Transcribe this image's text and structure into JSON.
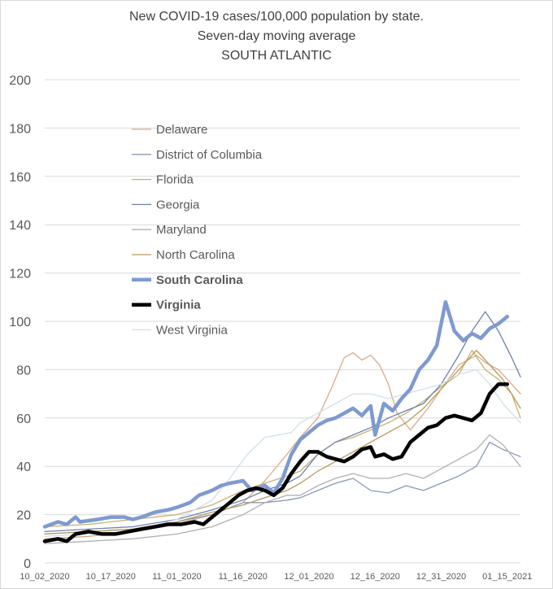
{
  "chart_data": {
    "type": "line",
    "title": "New COVID-19 cases/100,000 population by state.",
    "subtitle": "Seven-day moving average",
    "region_label": "SOUTH ATLANTIC",
    "xlabel": "",
    "ylabel": "",
    "ylim": [
      0,
      200
    ],
    "y_ticks": [
      0,
      20,
      40,
      60,
      80,
      100,
      120,
      140,
      160,
      180,
      200
    ],
    "x_ticks": [
      "10_02_2020",
      "10_17_2020",
      "11_01_2020",
      "11_16_2020",
      "12_01_2020",
      "12_16_2020",
      "12_31_2020",
      "01_15_2021"
    ],
    "x_range_days": [
      0,
      108
    ],
    "grid": "horizontal",
    "legend_position": "inside-top-left",
    "series": [
      {
        "name": "Delaware",
        "color": "#d9a98a",
        "bold": false,
        "points": [
          [
            0,
            10
          ],
          [
            10,
            11
          ],
          [
            20,
            13
          ],
          [
            30,
            16
          ],
          [
            38,
            20
          ],
          [
            45,
            25
          ],
          [
            50,
            34
          ],
          [
            55,
            45
          ],
          [
            58,
            52
          ],
          [
            62,
            60
          ],
          [
            65,
            72
          ],
          [
            68,
            85
          ],
          [
            70,
            87
          ],
          [
            72,
            84
          ],
          [
            74,
            86
          ],
          [
            76,
            82
          ],
          [
            78,
            74
          ],
          [
            80,
            62
          ],
          [
            83,
            55
          ],
          [
            87,
            64
          ],
          [
            90,
            72
          ],
          [
            94,
            82
          ],
          [
            98,
            86
          ],
          [
            100,
            83
          ],
          [
            103,
            80
          ],
          [
            106,
            74
          ],
          [
            108,
            70
          ]
        ]
      },
      {
        "name": "District of Columbia",
        "color": "#8a9ab5",
        "bold": false,
        "points": [
          [
            0,
            12
          ],
          [
            10,
            13
          ],
          [
            20,
            14
          ],
          [
            30,
            17
          ],
          [
            38,
            20
          ],
          [
            45,
            25
          ],
          [
            50,
            25
          ],
          [
            55,
            26
          ],
          [
            58,
            27
          ],
          [
            62,
            30
          ],
          [
            66,
            33
          ],
          [
            70,
            35
          ],
          [
            74,
            30
          ],
          [
            78,
            29
          ],
          [
            82,
            32
          ],
          [
            86,
            30
          ],
          [
            90,
            33
          ],
          [
            94,
            36
          ],
          [
            98,
            40
          ],
          [
            101,
            50
          ],
          [
            104,
            47
          ],
          [
            108,
            44
          ]
        ]
      },
      {
        "name": "Florida",
        "color": "#c8b071",
        "bold": false,
        "points": [
          [
            0,
            15
          ],
          [
            10,
            16
          ],
          [
            20,
            18
          ],
          [
            30,
            20
          ],
          [
            38,
            24
          ],
          [
            45,
            30
          ],
          [
            50,
            33
          ],
          [
            55,
            36
          ],
          [
            58,
            38
          ],
          [
            62,
            45
          ],
          [
            66,
            50
          ],
          [
            70,
            52
          ],
          [
            74,
            55
          ],
          [
            78,
            58
          ],
          [
            82,
            62
          ],
          [
            86,
            67
          ],
          [
            90,
            73
          ],
          [
            94,
            78
          ],
          [
            97,
            88
          ],
          [
            100,
            80
          ],
          [
            103,
            76
          ],
          [
            106,
            70
          ],
          [
            108,
            60
          ]
        ]
      },
      {
        "name": "Georgia",
        "color": "#6f83a8",
        "bold": false,
        "points": [
          [
            0,
            13
          ],
          [
            10,
            14
          ],
          [
            20,
            15
          ],
          [
            30,
            18
          ],
          [
            38,
            22
          ],
          [
            45,
            26
          ],
          [
            50,
            30
          ],
          [
            55,
            33
          ],
          [
            58,
            36
          ],
          [
            62,
            45
          ],
          [
            66,
            50
          ],
          [
            70,
            53
          ],
          [
            74,
            56
          ],
          [
            78,
            60
          ],
          [
            82,
            63
          ],
          [
            86,
            66
          ],
          [
            90,
            74
          ],
          [
            94,
            86
          ],
          [
            97,
            96
          ],
          [
            100,
            104
          ],
          [
            103,
            96
          ],
          [
            106,
            85
          ],
          [
            108,
            77
          ]
        ]
      },
      {
        "name": "Maryland",
        "color": "#b0b0b0",
        "bold": false,
        "points": [
          [
            0,
            8
          ],
          [
            10,
            9
          ],
          [
            20,
            10
          ],
          [
            30,
            12
          ],
          [
            38,
            15
          ],
          [
            45,
            20
          ],
          [
            50,
            25
          ],
          [
            55,
            28
          ],
          [
            58,
            28
          ],
          [
            62,
            32
          ],
          [
            66,
            35
          ],
          [
            70,
            37
          ],
          [
            74,
            35
          ],
          [
            78,
            35
          ],
          [
            82,
            37
          ],
          [
            86,
            35
          ],
          [
            90,
            39
          ],
          [
            94,
            43
          ],
          [
            98,
            47
          ],
          [
            101,
            53
          ],
          [
            104,
            49
          ],
          [
            108,
            40
          ]
        ]
      },
      {
        "name": "North Carolina",
        "color": "#b89a5a",
        "bold": false,
        "points": [
          [
            0,
            12
          ],
          [
            10,
            13
          ],
          [
            20,
            14
          ],
          [
            30,
            17
          ],
          [
            38,
            21
          ],
          [
            45,
            24
          ],
          [
            50,
            27
          ],
          [
            55,
            30
          ],
          [
            58,
            33
          ],
          [
            62,
            38
          ],
          [
            66,
            42
          ],
          [
            70,
            46
          ],
          [
            74,
            50
          ],
          [
            78,
            54
          ],
          [
            82,
            58
          ],
          [
            86,
            64
          ],
          [
            90,
            72
          ],
          [
            94,
            80
          ],
          [
            98,
            88
          ],
          [
            101,
            82
          ],
          [
            104,
            76
          ],
          [
            108,
            64
          ]
        ]
      },
      {
        "name": "South Carolina",
        "color": "#7f9ad0",
        "bold": true,
        "points": [
          [
            0,
            15
          ],
          [
            3,
            17
          ],
          [
            5,
            16
          ],
          [
            7,
            19
          ],
          [
            8,
            17
          ],
          [
            12,
            18
          ],
          [
            15,
            19
          ],
          [
            18,
            19
          ],
          [
            20,
            18
          ],
          [
            22,
            19
          ],
          [
            25,
            21
          ],
          [
            28,
            22
          ],
          [
            30,
            23
          ],
          [
            33,
            25
          ],
          [
            35,
            28
          ],
          [
            38,
            30
          ],
          [
            40,
            32
          ],
          [
            42,
            33
          ],
          [
            45,
            34
          ],
          [
            47,
            30
          ],
          [
            50,
            32
          ],
          [
            52,
            29
          ],
          [
            54,
            35
          ],
          [
            56,
            45
          ],
          [
            58,
            51
          ],
          [
            60,
            54
          ],
          [
            62,
            57
          ],
          [
            64,
            59
          ],
          [
            66,
            60
          ],
          [
            68,
            62
          ],
          [
            70,
            64
          ],
          [
            72,
            61
          ],
          [
            74,
            65
          ],
          [
            75,
            53
          ],
          [
            77,
            66
          ],
          [
            79,
            63
          ],
          [
            81,
            68
          ],
          [
            83,
            72
          ],
          [
            85,
            80
          ],
          [
            87,
            84
          ],
          [
            89,
            90
          ],
          [
            91,
            108
          ],
          [
            93,
            96
          ],
          [
            95,
            92
          ],
          [
            97,
            95
          ],
          [
            99,
            93
          ],
          [
            101,
            97
          ],
          [
            103,
            99
          ],
          [
            105,
            102
          ]
        ]
      },
      {
        "name": "Virginia",
        "color": "#000000",
        "bold": true,
        "points": [
          [
            0,
            9
          ],
          [
            3,
            10
          ],
          [
            5,
            9
          ],
          [
            7,
            12
          ],
          [
            10,
            13
          ],
          [
            13,
            12
          ],
          [
            16,
            12
          ],
          [
            19,
            13
          ],
          [
            22,
            14
          ],
          [
            25,
            15
          ],
          [
            28,
            16
          ],
          [
            31,
            16
          ],
          [
            34,
            17
          ],
          [
            36,
            16
          ],
          [
            38,
            19
          ],
          [
            40,
            22
          ],
          [
            42,
            25
          ],
          [
            44,
            28
          ],
          [
            46,
            30
          ],
          [
            48,
            31
          ],
          [
            50,
            30
          ],
          [
            52,
            28
          ],
          [
            54,
            31
          ],
          [
            56,
            37
          ],
          [
            58,
            42
          ],
          [
            60,
            46
          ],
          [
            62,
            46
          ],
          [
            64,
            44
          ],
          [
            66,
            43
          ],
          [
            68,
            42
          ],
          [
            70,
            44
          ],
          [
            72,
            47
          ],
          [
            74,
            48
          ],
          [
            75,
            44
          ],
          [
            77,
            45
          ],
          [
            79,
            43
          ],
          [
            81,
            44
          ],
          [
            83,
            50
          ],
          [
            85,
            53
          ],
          [
            87,
            56
          ],
          [
            89,
            57
          ],
          [
            91,
            60
          ],
          [
            93,
            61
          ],
          [
            95,
            60
          ],
          [
            97,
            59
          ],
          [
            99,
            62
          ],
          [
            101,
            70
          ],
          [
            103,
            74
          ],
          [
            105,
            74
          ]
        ]
      },
      {
        "name": "West Virginia",
        "color": "#cfe0ea",
        "bold": false,
        "points": [
          [
            0,
            11
          ],
          [
            10,
            12
          ],
          [
            20,
            13
          ],
          [
            30,
            18
          ],
          [
            38,
            26
          ],
          [
            42,
            35
          ],
          [
            46,
            45
          ],
          [
            50,
            52
          ],
          [
            53,
            53
          ],
          [
            56,
            54
          ],
          [
            58,
            58
          ],
          [
            62,
            62
          ],
          [
            66,
            66
          ],
          [
            70,
            70
          ],
          [
            74,
            70
          ],
          [
            78,
            68
          ],
          [
            82,
            70
          ],
          [
            86,
            72
          ],
          [
            90,
            74
          ],
          [
            94,
            78
          ],
          [
            98,
            80
          ],
          [
            101,
            74
          ],
          [
            104,
            66
          ],
          [
            108,
            58
          ]
        ]
      }
    ]
  }
}
